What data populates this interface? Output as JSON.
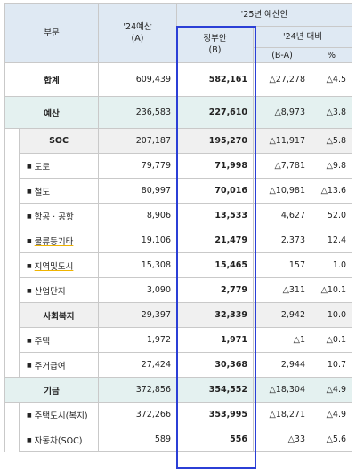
{
  "header": {
    "col_sector": "부문",
    "col_24_budget": "'24예산",
    "col_24_budget_sub": "(A)",
    "col_25_plan": "'25년 예산안",
    "col_gov_plan": "정부안",
    "col_gov_plan_sub": "(B)",
    "col_vs24": "'24년 대비",
    "col_diff": "(B-A)",
    "col_pct": "%"
  },
  "rows": [
    {
      "label": "합계",
      "a": "609,439",
      "b": "582,161",
      "diff": "△27,278",
      "pct": "△4.5"
    },
    {
      "label": "예산",
      "a": "236,583",
      "b": "227,610",
      "diff": "△8,973",
      "pct": "△3.8"
    },
    {
      "label": "SOC",
      "a": "207,187",
      "b": "195,270",
      "diff": "△11,917",
      "pct": "△5.8"
    },
    {
      "label": "도로",
      "a": "79,779",
      "b": "71,998",
      "diff": "△7,781",
      "pct": "△9.8"
    },
    {
      "label": "철도",
      "a": "80,997",
      "b": "70,016",
      "diff": "△10,981",
      "pct": "△13.6"
    },
    {
      "label": "항공 · 공항",
      "a": "8,906",
      "b": "13,533",
      "diff": "4,627",
      "pct": "52.0"
    },
    {
      "label": "물류등기타",
      "a": "19,106",
      "b": "21,479",
      "diff": "2,373",
      "pct": "12.4"
    },
    {
      "label": "지역및도시",
      "a": "15,308",
      "b": "15,465",
      "diff": "157",
      "pct": "1.0"
    },
    {
      "label": "산업단지",
      "a": "3,090",
      "b": "2,779",
      "diff": "△311",
      "pct": "△10.1"
    },
    {
      "label": "사회복지",
      "a": "29,397",
      "b": "32,339",
      "diff": "2,942",
      "pct": "10.0"
    },
    {
      "label": "주택",
      "a": "1,972",
      "b": "1,971",
      "diff": "△1",
      "pct": "△0.1"
    },
    {
      "label": "주거급여",
      "a": "27,424",
      "b": "30,368",
      "diff": "2,944",
      "pct": "10.7"
    },
    {
      "label": "기금",
      "a": "372,856",
      "b": "354,552",
      "diff": "△18,304",
      "pct": "△4.9"
    },
    {
      "label": "주택도시(복지)",
      "a": "372,266",
      "b": "353,995",
      "diff": "△18,271",
      "pct": "△4.9"
    },
    {
      "label": "자동차(SOC)",
      "a": "589",
      "b": "556",
      "diff": "△33",
      "pct": "△5.6"
    }
  ]
}
